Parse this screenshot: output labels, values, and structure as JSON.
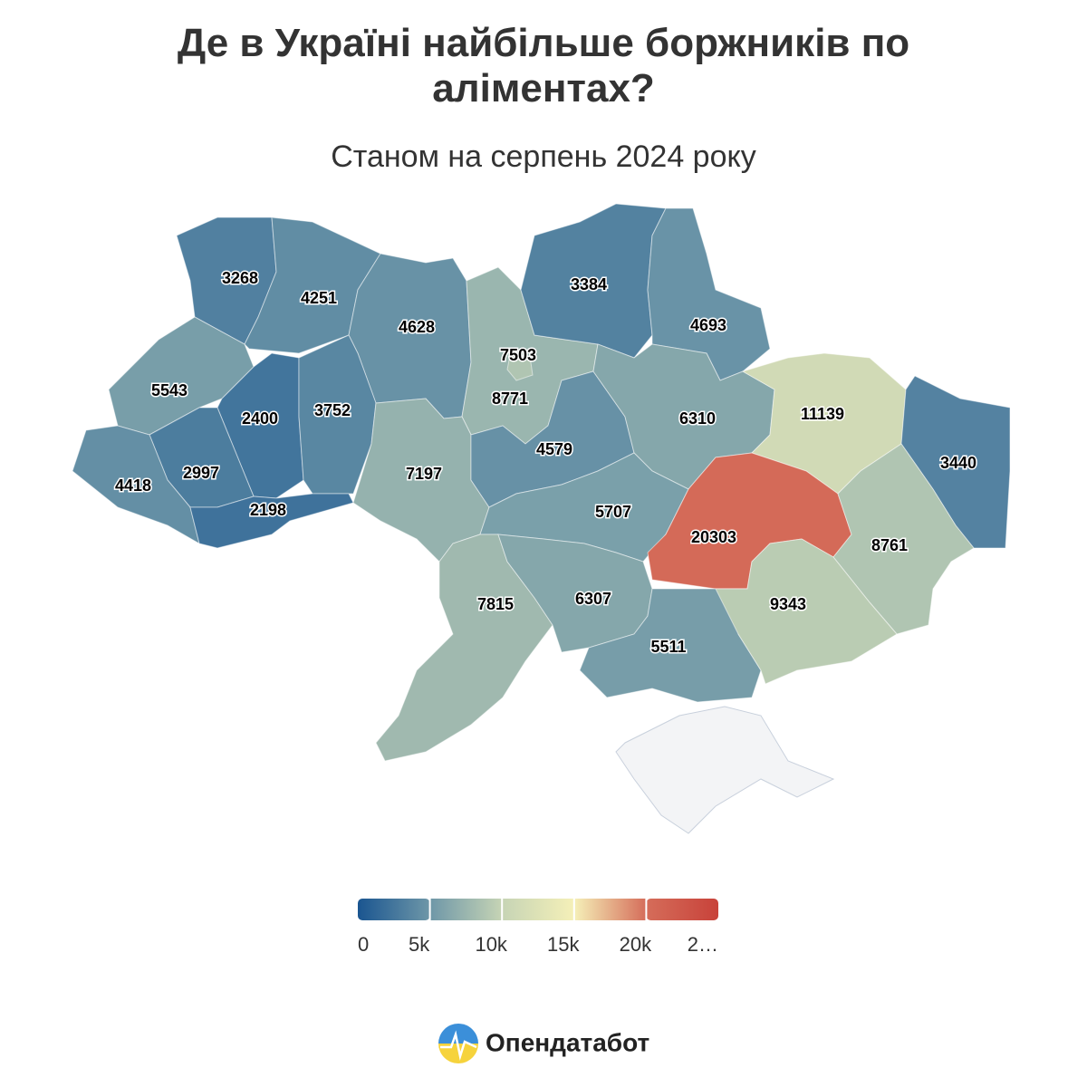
{
  "chart_data": {
    "type": "choropleth",
    "title": "Де в Україні найбільше боржників по аліментах?",
    "subtitle": "Станом на серпень 2024 року",
    "values": [
      3268,
      4251,
      4628,
      7503,
      8771,
      3384,
      4693,
      5543,
      2400,
      3752,
      2997,
      4418,
      2198,
      7197,
      4579,
      6310,
      11139,
      3440,
      5707,
      20303,
      8761,
      7815,
      6307,
      5511,
      9343
    ],
    "colorbar": {
      "lim": [
        0,
        25000
      ],
      "ticks": [
        0,
        {
          "value": 5000,
          "label": "5k"
        },
        {
          "value": 10000,
          "label": "10k"
        },
        {
          "value": 15000,
          "label": "15k"
        },
        {
          "value": 20000,
          "label": "20k"
        },
        {
          "value": 25000,
          "label": "2…"
        }
      ],
      "colors": [
        "#1a5590",
        "#6e97a8",
        "#c6d4b5",
        "#f5f0b8",
        "#d56d5a",
        "#c8423a"
      ]
    },
    "no_data_color": "#f3f4f6"
  },
  "footer": {
    "brand": "Опендатабот"
  }
}
